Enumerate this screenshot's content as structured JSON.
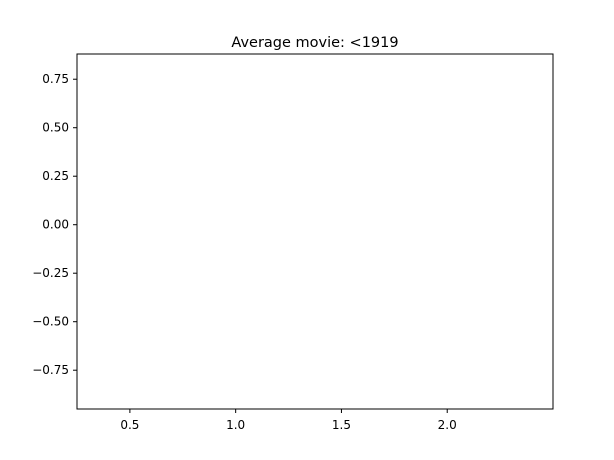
{
  "chart_data": {
    "type": "line",
    "title": "Average movie: <1919",
    "xlabel": "",
    "ylabel": "",
    "xlim": [
      0.25,
      2.5
    ],
    "ylim": [
      -0.95,
      0.88
    ],
    "x_ticks": [
      0.5,
      1.0,
      1.5,
      2.0
    ],
    "x_tick_labels": [
      "0.5",
      "1.0",
      "1.5",
      "2.0"
    ],
    "y_ticks": [
      0.75,
      0.5,
      0.25,
      0.0,
      -0.25,
      -0.5,
      -0.75
    ],
    "y_tick_labels": [
      "0.75",
      "0.50",
      "0.25",
      "0.00",
      "−0.25",
      "−0.50",
      "−0.75"
    ],
    "grid": false,
    "series": []
  }
}
